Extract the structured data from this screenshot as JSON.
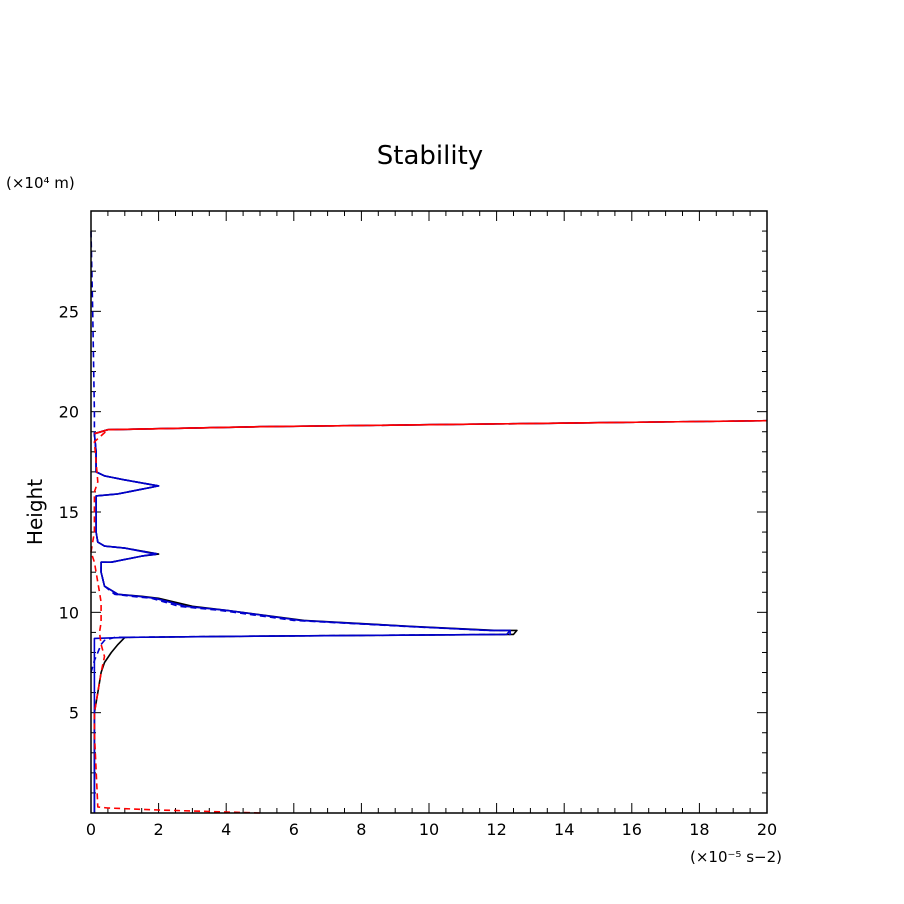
{
  "chart_data": {
    "type": "line",
    "title": "Stability",
    "xlabel": "",
    "ylabel": "Height",
    "x_unit_label": "(×10⁻⁵ s−2)",
    "y_unit_label": "(×10⁴ m)",
    "xlim": [
      0,
      20
    ],
    "ylim": [
      0,
      30
    ],
    "x_ticks": [
      0,
      2,
      4,
      6,
      8,
      10,
      12,
      14,
      16,
      18,
      20
    ],
    "y_ticks": [
      5,
      10,
      15,
      20,
      25
    ],
    "x_minor_step": 0.5,
    "y_minor_step": 1,
    "grid": false,
    "legend": "none",
    "series": [
      {
        "color": "#000000",
        "dash": "solid",
        "points": [
          [
            0.1,
            0
          ],
          [
            0.1,
            5
          ],
          [
            0.2,
            6
          ],
          [
            0.3,
            7
          ],
          [
            0.4,
            7.5
          ],
          [
            0.6,
            8
          ],
          [
            0.8,
            8.4
          ],
          [
            1.0,
            8.75
          ],
          [
            4,
            8.8
          ],
          [
            8,
            8.85
          ],
          [
            12.5,
            8.9
          ],
          [
            12.6,
            9.1
          ],
          [
            12,
            9.1
          ],
          [
            9.5,
            9.3
          ],
          [
            6.3,
            9.6
          ],
          [
            4,
            10.1
          ],
          [
            3,
            10.3
          ],
          [
            2,
            10.7
          ],
          [
            1.5,
            10.8
          ],
          [
            0.8,
            10.9
          ],
          [
            0.4,
            11.3
          ],
          [
            0.3,
            12
          ],
          [
            0.3,
            12.5
          ],
          [
            0.6,
            12.5
          ],
          [
            1.5,
            12.8
          ],
          [
            2,
            12.9
          ],
          [
            1,
            13.2
          ],
          [
            0.4,
            13.3
          ],
          [
            0.2,
            13.5
          ],
          [
            0.15,
            14
          ],
          [
            0.15,
            15
          ],
          [
            0.15,
            15.8
          ],
          [
            0.8,
            15.9
          ],
          [
            2,
            16.3
          ],
          [
            1,
            16.6
          ],
          [
            0.4,
            16.8
          ],
          [
            0.15,
            17
          ],
          [
            0.15,
            18
          ],
          [
            0.1,
            18.9
          ],
          [
            0.5,
            19.1
          ],
          [
            2,
            19.15
          ],
          [
            5,
            19.25
          ],
          [
            10,
            19.35
          ],
          [
            15,
            19.45
          ],
          [
            20,
            19.55
          ]
        ]
      },
      {
        "color": "#0000cc",
        "dash": "solid",
        "points": [
          [
            0.1,
            0
          ],
          [
            0.1,
            8.7
          ],
          [
            1.0,
            8.75
          ],
          [
            4,
            8.8
          ],
          [
            8,
            8.85
          ],
          [
            12.3,
            8.9
          ],
          [
            12.4,
            9.1
          ],
          [
            11.8,
            9.1
          ],
          [
            9.4,
            9.3
          ],
          [
            6.2,
            9.6
          ],
          [
            4,
            10.1
          ],
          [
            2.8,
            10.3
          ],
          [
            1.9,
            10.7
          ],
          [
            1.4,
            10.8
          ],
          [
            0.8,
            10.9
          ],
          [
            0.4,
            11.3
          ],
          [
            0.3,
            12
          ],
          [
            0.3,
            12.5
          ],
          [
            0.6,
            12.5
          ],
          [
            1.5,
            12.8
          ],
          [
            1.9,
            12.9
          ],
          [
            1,
            13.2
          ],
          [
            0.4,
            13.3
          ],
          [
            0.2,
            13.5
          ],
          [
            0.15,
            14
          ],
          [
            0.15,
            15
          ],
          [
            0.15,
            15.8
          ],
          [
            0.8,
            15.9
          ],
          [
            2,
            16.3
          ],
          [
            1,
            16.6
          ],
          [
            0.4,
            16.8
          ],
          [
            0.15,
            17
          ],
          [
            0.15,
            18
          ],
          [
            0.1,
            18.9
          ],
          [
            0.5,
            19.1
          ],
          [
            2,
            19.15
          ],
          [
            5,
            19.25
          ],
          [
            10,
            19.35
          ],
          [
            15,
            19.45
          ],
          [
            20,
            19.55
          ]
        ]
      },
      {
        "color": "#0000cc",
        "dash": "dashed",
        "points": [
          [
            0,
            7
          ],
          [
            0.1,
            7.6
          ],
          [
            0.2,
            8
          ],
          [
            0.3,
            8.4
          ],
          [
            0.4,
            8.6
          ],
          [
            0.7,
            8.75
          ],
          [
            4,
            8.8
          ],
          [
            8,
            8.85
          ],
          [
            12.4,
            8.9
          ],
          [
            12.4,
            9.1
          ],
          [
            11.7,
            9.1
          ],
          [
            9.3,
            9.3
          ],
          [
            6,
            9.6
          ],
          [
            3.8,
            10.1
          ],
          [
            2.6,
            10.3
          ],
          [
            1.8,
            10.7
          ],
          [
            1.2,
            10.8
          ],
          [
            0.7,
            10.9
          ],
          [
            0.4,
            11.3
          ],
          [
            0.3,
            12
          ],
          [
            0.3,
            12.5
          ],
          [
            0.6,
            12.5
          ],
          [
            1.5,
            12.8
          ],
          [
            2,
            12.9
          ],
          [
            1,
            13.2
          ],
          [
            0.4,
            13.3
          ],
          [
            0.2,
            13.5
          ],
          [
            0.15,
            14
          ],
          [
            0.15,
            15
          ],
          [
            0.15,
            15.8
          ],
          [
            0.8,
            15.9
          ],
          [
            2,
            16.3
          ],
          [
            1,
            16.6
          ],
          [
            0.4,
            16.8
          ],
          [
            0.15,
            17
          ],
          [
            0.15,
            18
          ],
          [
            0.1,
            18.9
          ],
          [
            0.1,
            20
          ],
          [
            0.05,
            25
          ],
          [
            0,
            29
          ]
        ]
      },
      {
        "color": "#ff0000",
        "dash": "dashed",
        "points": [
          [
            5,
            0
          ],
          [
            2,
            0.15
          ],
          [
            0.5,
            0.25
          ],
          [
            0.2,
            0.3
          ],
          [
            0.1,
            4
          ],
          [
            0.1,
            5
          ],
          [
            0.2,
            6
          ],
          [
            0.3,
            7
          ],
          [
            0.4,
            7.8
          ],
          [
            0.3,
            8.4
          ],
          [
            0.25,
            9
          ],
          [
            0.3,
            9.5
          ],
          [
            0.3,
            10
          ],
          [
            0.3,
            10.5
          ],
          [
            0.25,
            11
          ],
          [
            0.15,
            12
          ],
          [
            0.1,
            12.5
          ],
          [
            0,
            13
          ],
          [
            0.1,
            14
          ],
          [
            0.1,
            15
          ],
          [
            0.1,
            16
          ],
          [
            0.2,
            16.5
          ],
          [
            0.15,
            17.5
          ],
          [
            0.1,
            18.5
          ],
          [
            0.5,
            19.1
          ],
          [
            2,
            19.15
          ],
          [
            5,
            19.25
          ],
          [
            10,
            19.35
          ],
          [
            15,
            19.45
          ],
          [
            20,
            19.55
          ]
        ]
      },
      {
        "color": "#ff0000",
        "dash": "solid",
        "points": [
          [
            0.1,
            18.9
          ],
          [
            0.5,
            19.1
          ],
          [
            2,
            19.15
          ],
          [
            5,
            19.25
          ],
          [
            10,
            19.35
          ],
          [
            15,
            19.45
          ],
          [
            20,
            19.55
          ]
        ]
      }
    ]
  }
}
